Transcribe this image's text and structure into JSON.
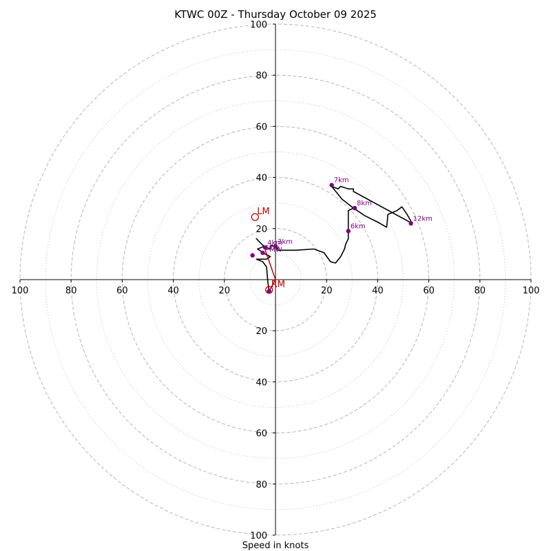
{
  "chart_data": {
    "type": "hodograph",
    "title": "KTWC 00Z - Thursday October 09 2025",
    "xlabel": "Speed in knots",
    "range": [
      -100,
      100
    ],
    "rings_major": [
      20,
      40,
      60,
      80,
      100
    ],
    "rings_minor": [
      10,
      30,
      50,
      70,
      90
    ],
    "tick_labels": {
      "left": [
        "100",
        "80",
        "60",
        "40",
        "20"
      ],
      "right": [
        "20",
        "40",
        "60",
        "80",
        "100"
      ],
      "top": [
        "20",
        "40",
        "60",
        "80",
        "100"
      ],
      "bottom": [
        "20",
        "40",
        "60",
        "80",
        "100"
      ]
    },
    "colors": {
      "trace": "#000000",
      "height": "#800080",
      "motion": "#c00000",
      "grid": "#bbbbbb"
    },
    "trace": [
      [
        -2.5,
        -4.5
      ],
      [
        -3,
        -1
      ],
      [
        -3.5,
        5
      ],
      [
        -5,
        7
      ],
      [
        -7.5,
        8
      ],
      [
        -3.5,
        8
      ],
      [
        -2,
        9
      ],
      [
        -4,
        10
      ],
      [
        -7,
        12
      ],
      [
        -4.5,
        13
      ],
      [
        -6,
        14.5
      ],
      [
        -7.5,
        16
      ],
      [
        -5,
        13.5
      ],
      [
        -2.5,
        12
      ],
      [
        -1.5,
        13.5
      ],
      [
        -0.5,
        13
      ],
      [
        0.5,
        13
      ],
      [
        1,
        11.5
      ],
      [
        8,
        11.5
      ],
      [
        15,
        12
      ],
      [
        19,
        10.5
      ],
      [
        21.5,
        7
      ],
      [
        23.5,
        6.5
      ],
      [
        25.5,
        9
      ],
      [
        27,
        12
      ],
      [
        27.5,
        14
      ],
      [
        28.5,
        16
      ],
      [
        28.5,
        19.5
      ],
      [
        28.5,
        24
      ],
      [
        28.5,
        27
      ],
      [
        30.5,
        28
      ],
      [
        35,
        25
      ],
      [
        40,
        22.5
      ],
      [
        43.5,
        20.5
      ],
      [
        44,
        25.5
      ],
      [
        47.5,
        27
      ],
      [
        49.5,
        28.5
      ],
      [
        51.5,
        25.5
      ],
      [
        53.5,
        22
      ],
      [
        30.5,
        34.5
      ],
      [
        30.5,
        35.5
      ],
      [
        28.5,
        35.5
      ],
      [
        25.5,
        36.5
      ],
      [
        24.5,
        35.5
      ],
      [
        22,
        36.5
      ],
      [
        26,
        31.5
      ],
      [
        30.5,
        28
      ]
    ],
    "height_points": [
      {
        "label": "3km",
        "u": 0,
        "v": 13
      },
      {
        "label": "4km",
        "u": -4,
        "v": 12.5
      },
      {
        "label": "5km",
        "u": -5,
        "v": 10.5
      },
      {
        "label": "",
        "u": -9,
        "v": 9.5
      },
      {
        "label": "6km",
        "u": 28.5,
        "v": 19
      },
      {
        "label": "7km",
        "u": 22,
        "v": 37
      },
      {
        "label": "8km",
        "u": 31,
        "v": 28
      },
      {
        "label": "12km",
        "u": 53,
        "v": 22
      },
      {
        "label": "",
        "u": -2.5,
        "v": -4.5
      }
    ],
    "storm_motion": {
      "LM": {
        "label": "LM",
        "u": -8,
        "v": 24.5
      },
      "RM": {
        "label": "RM",
        "u": -2.5,
        "v": -4
      },
      "mean": {
        "label": "MW",
        "u": -4,
        "v": 11.5
      },
      "line": [
        [
          -4,
          11.5
        ],
        [
          0,
          0
        ],
        [
          -2.5,
          -4.5
        ]
      ]
    }
  }
}
